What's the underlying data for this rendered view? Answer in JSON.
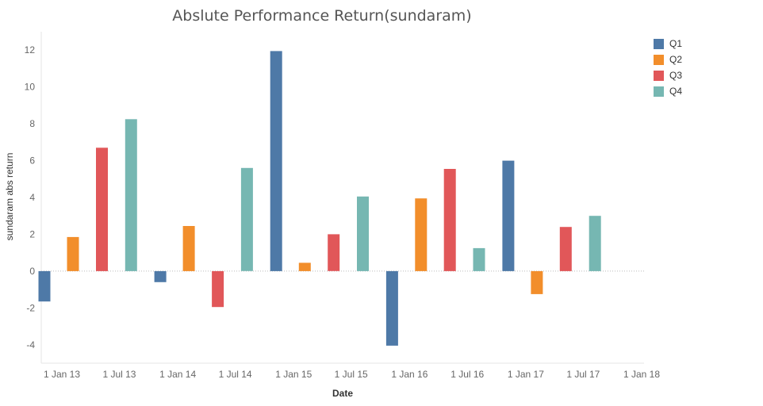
{
  "chart_data": {
    "type": "bar",
    "title": "Abslute Performance Return(sundaram)",
    "xlabel": "Date",
    "ylabel": "sundaram abs return",
    "ylim": [
      -5,
      13
    ],
    "yticks": [
      -4,
      -2,
      0,
      2,
      4,
      6,
      8,
      10,
      12
    ],
    "ytick_labels": [
      "-4",
      "-2",
      "0",
      "2",
      "4",
      "6",
      "8",
      "10",
      "12"
    ],
    "xtick_labels": [
      "1 Jan 13",
      "1 Jul 13",
      "1 Jan 14",
      "1 Jul 14",
      "1 Jan 15",
      "1 Jul 15",
      "1 Jan 16",
      "1 Jul 16",
      "1 Jan 17",
      "1 Jul 17",
      "1 Jan 18"
    ],
    "legend_position": "top-right",
    "colors": {
      "Q1": "#4e79a7",
      "Q2": "#f28e2b",
      "Q3": "#e15759",
      "Q4": "#76b7b2"
    },
    "bars": [
      {
        "date": "2013-01-01",
        "quarter": "Q1",
        "value": -1.65
      },
      {
        "date": "2013-04-01",
        "quarter": "Q2",
        "value": 1.85
      },
      {
        "date": "2013-07-01",
        "quarter": "Q3",
        "value": 6.7
      },
      {
        "date": "2013-10-01",
        "quarter": "Q4",
        "value": 8.25
      },
      {
        "date": "2014-01-01",
        "quarter": "Q1",
        "value": -0.6
      },
      {
        "date": "2014-04-01",
        "quarter": "Q2",
        "value": 2.45
      },
      {
        "date": "2014-07-01",
        "quarter": "Q3",
        "value": -1.95
      },
      {
        "date": "2014-10-01",
        "quarter": "Q4",
        "value": 5.6
      },
      {
        "date": "2015-01-01",
        "quarter": "Q1",
        "value": 11.95
      },
      {
        "date": "2015-04-01",
        "quarter": "Q2",
        "value": 0.45
      },
      {
        "date": "2015-07-01",
        "quarter": "Q3",
        "value": 2.0
      },
      {
        "date": "2015-10-01",
        "quarter": "Q4",
        "value": 4.05
      },
      {
        "date": "2016-01-01",
        "quarter": "Q1",
        "value": -4.05
      },
      {
        "date": "2016-04-01",
        "quarter": "Q2",
        "value": 3.95
      },
      {
        "date": "2016-07-01",
        "quarter": "Q3",
        "value": 5.55
      },
      {
        "date": "2016-10-01",
        "quarter": "Q4",
        "value": 1.25
      },
      {
        "date": "2017-01-01",
        "quarter": "Q1",
        "value": 6.0
      },
      {
        "date": "2017-04-01",
        "quarter": "Q2",
        "value": -1.25
      },
      {
        "date": "2017-07-01",
        "quarter": "Q3",
        "value": 2.4
      },
      {
        "date": "2017-10-01",
        "quarter": "Q4",
        "value": 3.0
      }
    ]
  },
  "legend": [
    {
      "label": "Q1",
      "color": "#4e79a7"
    },
    {
      "label": "Q2",
      "color": "#f28e2b"
    },
    {
      "label": "Q3",
      "color": "#e15759"
    },
    {
      "label": "Q4",
      "color": "#76b7b2"
    }
  ]
}
